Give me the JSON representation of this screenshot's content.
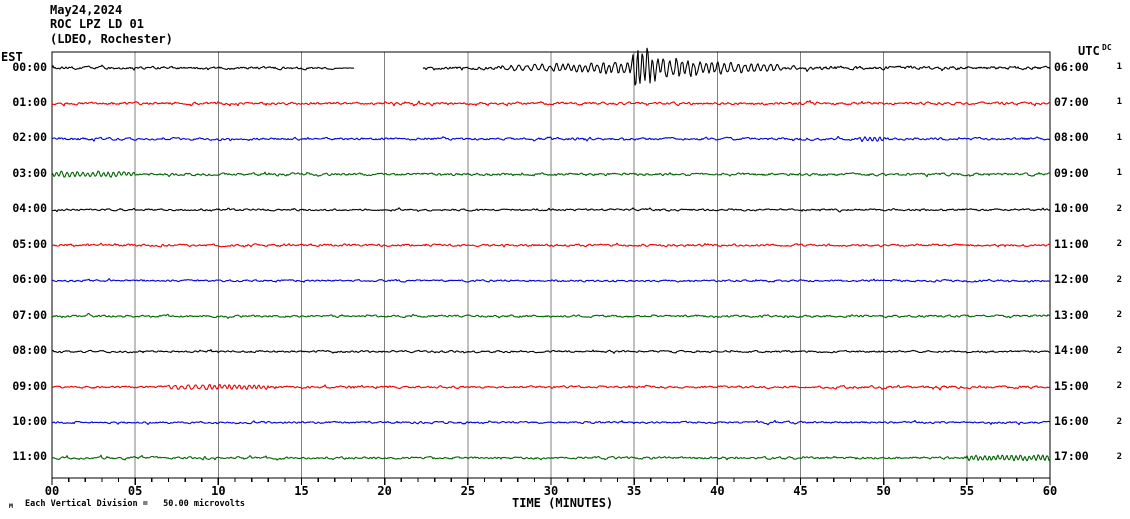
{
  "header": {
    "date": "May24,2024",
    "station": "ROC LPZ LD 01",
    "location": "(LDEO, Rochester)"
  },
  "axes": {
    "left_header": "EST",
    "right_header": "UTC",
    "dc_header": "DC",
    "x_title": "TIME (MINUTES)",
    "x_ticks": [
      "00",
      "05",
      "10",
      "15",
      "20",
      "25",
      "30",
      "35",
      "40",
      "45",
      "50",
      "55",
      "60"
    ],
    "scale_marker": "M",
    "scale_note": "Each Vertical Division =   50.00 microvolts"
  },
  "colors": {
    "black": "#000000",
    "red": "#ee0000",
    "blue": "#0000dd",
    "green": "#006600",
    "grid": "#808080",
    "frame": "#000000",
    "background": "#ffffff"
  },
  "chart_data": {
    "type": "line",
    "title": "ROC LPZ LD 01 (LDEO, Rochester) helicorder, May24,2024",
    "xlabel": "TIME (MINUTES)",
    "x_range_minutes": [
      0,
      60
    ],
    "minor_tick_minutes": 1,
    "major_tick_minutes": 5,
    "grid": "vertical-5min",
    "vertical_division_microvolts": 50.0,
    "rows": [
      {
        "est": "00:00",
        "utc": "06:00",
        "dc": "1",
        "color": "black",
        "segments": [
          {
            "t0": 0,
            "t1": 17,
            "type": "noise",
            "a0": 2.2,
            "a1": 2.2
          },
          {
            "t0": 17,
            "t1": 18.2,
            "type": "noise",
            "a0": 0.5,
            "a1": 0.4
          },
          {
            "t0": 18.2,
            "t1": 22.3,
            "type": "gap"
          },
          {
            "t0": 22.3,
            "t1": 27,
            "type": "noise",
            "a0": 2.2,
            "a1": 2.5
          },
          {
            "t0": 27,
            "t1": 30,
            "type": "wave",
            "wl": 8,
            "a0": 3,
            "a1": 4.2
          },
          {
            "t0": 30,
            "t1": 34.7,
            "type": "wave",
            "wl": 6,
            "a0": 4.5,
            "a1": 7
          },
          {
            "t0": 34.7,
            "t1": 35.3,
            "type": "wave",
            "wl": 5,
            "a0": 8,
            "a1": 26
          },
          {
            "t0": 35.3,
            "t1": 36.8,
            "type": "wave",
            "wl": 5,
            "a0": 26,
            "a1": 12
          },
          {
            "t0": 36.8,
            "t1": 40,
            "type": "wave",
            "wl": 6,
            "a0": 12,
            "a1": 7
          },
          {
            "t0": 40,
            "t1": 44,
            "type": "wave",
            "wl": 7,
            "a0": 7,
            "a1": 4
          },
          {
            "t0": 44,
            "t1": 52,
            "type": "noise",
            "a0": 3.2,
            "a1": 2.8
          },
          {
            "t0": 52,
            "t1": 60,
            "type": "noise",
            "a0": 2.8,
            "a1": 2.5
          }
        ]
      },
      {
        "est": "01:00",
        "utc": "07:00",
        "dc": "1",
        "color": "red",
        "segments": [
          {
            "t0": 0,
            "t1": 60,
            "type": "noise",
            "a0": 2.1,
            "a1": 2.1
          }
        ]
      },
      {
        "est": "02:00",
        "utc": "08:00",
        "dc": "1",
        "color": "blue",
        "segments": [
          {
            "t0": 0,
            "t1": 48.5,
            "type": "noise",
            "a0": 1.9,
            "a1": 1.9
          },
          {
            "t0": 48.5,
            "t1": 50,
            "type": "wave",
            "wl": 5,
            "a0": 2.8,
            "a1": 2.4
          },
          {
            "t0": 50,
            "t1": 60,
            "type": "noise",
            "a0": 1.9,
            "a1": 1.9
          }
        ]
      },
      {
        "est": "03:00",
        "utc": "09:00",
        "dc": "1",
        "color": "green",
        "segments": [
          {
            "t0": 0,
            "t1": 5,
            "type": "wave",
            "wl": 5,
            "a0": 3.6,
            "a1": 2.6
          },
          {
            "t0": 5,
            "t1": 60,
            "type": "noise",
            "a0": 2.1,
            "a1": 2.0
          }
        ]
      },
      {
        "est": "04:00",
        "utc": "10:00",
        "dc": "2",
        "color": "black",
        "segments": [
          {
            "t0": 0,
            "t1": 60,
            "type": "noise",
            "a0": 1.5,
            "a1": 1.5
          }
        ]
      },
      {
        "est": "05:00",
        "utc": "11:00",
        "dc": "2",
        "color": "red",
        "segments": [
          {
            "t0": 0,
            "t1": 60,
            "type": "noise",
            "a0": 1.9,
            "a1": 1.9
          }
        ]
      },
      {
        "est": "06:00",
        "utc": "12:00",
        "dc": "2",
        "color": "blue",
        "segments": [
          {
            "t0": 0,
            "t1": 60,
            "type": "noise",
            "a0": 1.6,
            "a1": 1.6
          }
        ]
      },
      {
        "est": "07:00",
        "utc": "13:00",
        "dc": "2",
        "color": "green",
        "segments": [
          {
            "t0": 0,
            "t1": 60,
            "type": "noise",
            "a0": 1.7,
            "a1": 1.7
          }
        ]
      },
      {
        "est": "08:00",
        "utc": "14:00",
        "dc": "2",
        "color": "black",
        "segments": [
          {
            "t0": 0,
            "t1": 60,
            "type": "noise",
            "a0": 1.6,
            "a1": 1.6
          }
        ]
      },
      {
        "est": "09:00",
        "utc": "15:00",
        "dc": "2",
        "color": "red",
        "segments": [
          {
            "t0": 0,
            "t1": 7,
            "type": "noise",
            "a0": 1.7,
            "a1": 1.7
          },
          {
            "t0": 7,
            "t1": 9.5,
            "type": "wave",
            "wl": 7,
            "a0": 2.6,
            "a1": 3.0
          },
          {
            "t0": 9.5,
            "t1": 13,
            "type": "wave",
            "wl": 5,
            "a0": 3.2,
            "a1": 2.4
          },
          {
            "t0": 13,
            "t1": 47,
            "type": "noise",
            "a0": 1.8,
            "a1": 1.8
          },
          {
            "t0": 47,
            "t1": 52,
            "type": "noise",
            "a0": 2.4,
            "a1": 2.2
          },
          {
            "t0": 52,
            "t1": 60,
            "type": "noise",
            "a0": 2.1,
            "a1": 2.2
          }
        ]
      },
      {
        "est": "10:00",
        "utc": "16:00",
        "dc": "2",
        "color": "blue",
        "segments": [
          {
            "t0": 0,
            "t1": 60,
            "type": "noise",
            "a0": 1.6,
            "a1": 1.6
          }
        ]
      },
      {
        "est": "11:00",
        "utc": "17:00",
        "dc": "2",
        "color": "green",
        "segments": [
          {
            "t0": 0,
            "t1": 55,
            "type": "noise",
            "a0": 1.8,
            "a1": 1.8
          },
          {
            "t0": 55,
            "t1": 60,
            "type": "wave",
            "wl": 4.5,
            "a0": 3.2,
            "a1": 3.6
          }
        ]
      }
    ]
  }
}
